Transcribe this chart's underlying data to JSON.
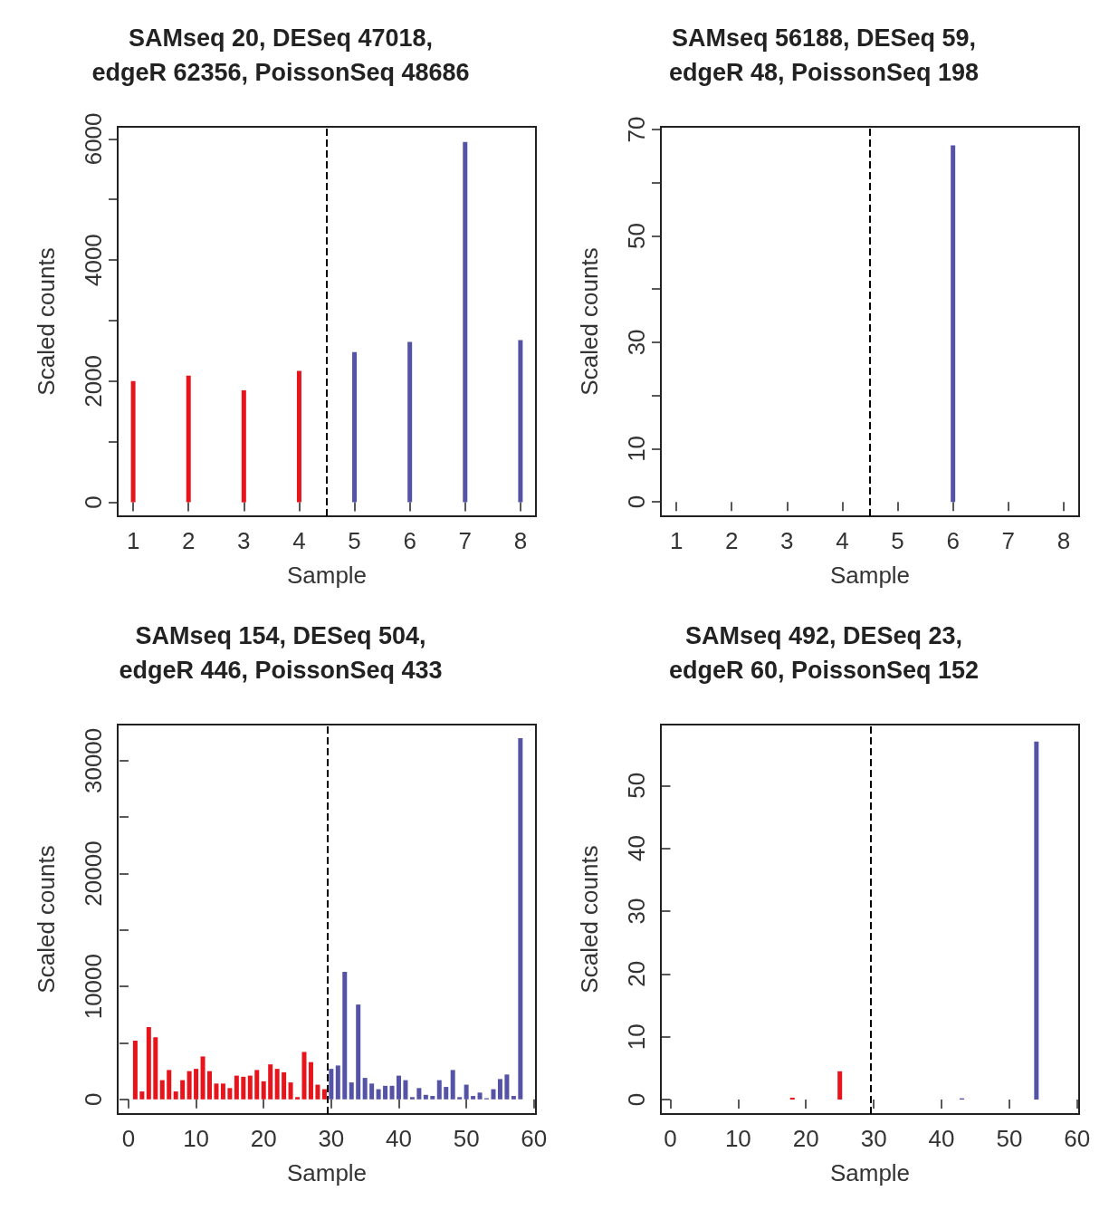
{
  "chart_data": [
    {
      "type": "bar",
      "title": "SAMseq 20, DESeq 47018,\nedgeR 62356, PoissonSeq 48686",
      "xlabel": "Sample",
      "ylabel": "Scaled counts",
      "x": [
        1,
        2,
        3,
        4,
        5,
        6,
        7,
        8
      ],
      "values": [
        2000,
        2090,
        1850,
        2170,
        2480,
        2650,
        5950,
        2680
      ],
      "colors": [
        "#e8141c",
        "#e8141c",
        "#e8141c",
        "#e8141c",
        "#5553a6",
        "#5553a6",
        "#5553a6",
        "#5553a6"
      ],
      "xlim": [
        0.72,
        8.28
      ],
      "xticks": [
        1,
        2,
        3,
        4,
        5,
        6,
        7,
        8
      ],
      "ylim": [
        -230,
        6200
      ],
      "yticks": [
        0,
        {
          "value": 1000,
          "label": null
        },
        2000,
        {
          "value": 3000,
          "label": null
        },
        4000,
        {
          "value": 5000,
          "label": null
        },
        6000
      ],
      "ref_lines": [
        {
          "axis": "x",
          "value": 4.5,
          "line_style": "dashed",
          "color": "#000000"
        }
      ],
      "grid": false
    },
    {
      "type": "bar",
      "title": "SAMseq 56188, DESeq 59,\nedgeR 48, PoissonSeq 198",
      "xlabel": "Sample",
      "ylabel": "Scaled counts",
      "x": [
        1,
        2,
        3,
        4,
        5,
        6,
        7,
        8
      ],
      "values": [
        0,
        0,
        0,
        0,
        0,
        67,
        0,
        0
      ],
      "colors": [
        "#e8141c",
        "#e8141c",
        "#e8141c",
        "#e8141c",
        "#5553a6",
        "#5553a6",
        "#5553a6",
        "#5553a6"
      ],
      "xlim": [
        0.72,
        8.28
      ],
      "xticks": [
        1,
        2,
        3,
        4,
        5,
        6,
        7,
        8
      ],
      "ylim": [
        -2.7,
        70.5
      ],
      "yticks": [
        0,
        10,
        {
          "value": 20,
          "label": null
        },
        30,
        {
          "value": 40,
          "label": null
        },
        50,
        {
          "value": 60,
          "label": null
        },
        70
      ],
      "ref_lines": [
        {
          "axis": "x",
          "value": 4.5,
          "line_style": "dashed",
          "color": "#000000"
        }
      ],
      "grid": false
    },
    {
      "type": "bar",
      "title": "SAMseq 154, DESeq 504,\nedgeR 446, PoissonSeq 433",
      "xlabel": "Sample",
      "ylabel": "Scaled counts",
      "x": [
        1,
        2,
        3,
        4,
        5,
        6,
        7,
        8,
        9,
        10,
        11,
        12,
        13,
        14,
        15,
        16,
        17,
        18,
        19,
        20,
        21,
        22,
        23,
        24,
        25,
        26,
        27,
        28,
        29,
        30,
        31,
        32,
        33,
        34,
        35,
        36,
        37,
        38,
        39,
        40,
        41,
        42,
        43,
        44,
        45,
        46,
        47,
        48,
        49,
        50,
        51,
        52,
        53,
        54,
        55,
        56,
        57,
        58
      ],
      "values": [
        5200,
        700,
        6400,
        5500,
        1700,
        2600,
        700,
        1700,
        2500,
        2700,
        3800,
        2500,
        1400,
        1400,
        1000,
        2100,
        2000,
        2100,
        2600,
        1600,
        3100,
        2700,
        2400,
        1500,
        200,
        4200,
        3300,
        1300,
        900,
        2700,
        3000,
        11300,
        1500,
        8400,
        1900,
        1400,
        900,
        1200,
        1200,
        2100,
        1700,
        200,
        1000,
        400,
        300,
        1700,
        1100,
        2600,
        200,
        1300,
        300,
        600,
        100,
        900,
        1800,
        2200,
        300,
        32000
      ],
      "colors": [
        "#e8141c",
        "#e8141c",
        "#e8141c",
        "#e8141c",
        "#e8141c",
        "#e8141c",
        "#e8141c",
        "#e8141c",
        "#e8141c",
        "#e8141c",
        "#e8141c",
        "#e8141c",
        "#e8141c",
        "#e8141c",
        "#e8141c",
        "#e8141c",
        "#e8141c",
        "#e8141c",
        "#e8141c",
        "#e8141c",
        "#e8141c",
        "#e8141c",
        "#e8141c",
        "#e8141c",
        "#e8141c",
        "#e8141c",
        "#e8141c",
        "#e8141c",
        "#e8141c",
        "#5553a6",
        "#5553a6",
        "#5553a6",
        "#5553a6",
        "#5553a6",
        "#5553a6",
        "#5553a6",
        "#5553a6",
        "#5553a6",
        "#5553a6",
        "#5553a6",
        "#5553a6",
        "#5553a6",
        "#5553a6",
        "#5553a6",
        "#5553a6",
        "#5553a6",
        "#5553a6",
        "#5553a6",
        "#5553a6",
        "#5553a6",
        "#5553a6",
        "#5553a6",
        "#5553a6",
        "#5553a6",
        "#5553a6",
        "#5553a6",
        "#5553a6",
        "#5553a6"
      ],
      "xlim": [
        -1.6,
        60.3
      ],
      "xticks": [
        0,
        10,
        20,
        30,
        40,
        50,
        60
      ],
      "ylim": [
        -1300,
        33200
      ],
      "yticks": [
        0,
        {
          "value": 5000,
          "label": null
        },
        10000,
        {
          "value": 15000,
          "label": null
        },
        20000,
        {
          "value": 25000,
          "label": null
        },
        30000
      ],
      "ref_lines": [
        {
          "axis": "x",
          "value": 29.5,
          "line_style": "dashed",
          "color": "#000000"
        }
      ],
      "grid": false
    },
    {
      "type": "bar",
      "title": "SAMseq 492, DESeq 23,\nedgeR 60, PoissonSeq 152",
      "xlabel": "Sample",
      "ylabel": "Scaled counts",
      "x": [
        1,
        2,
        3,
        4,
        5,
        6,
        7,
        8,
        9,
        10,
        11,
        12,
        13,
        14,
        15,
        16,
        17,
        18,
        19,
        20,
        21,
        22,
        23,
        24,
        25,
        26,
        27,
        28,
        29,
        30,
        31,
        32,
        33,
        34,
        35,
        36,
        37,
        38,
        39,
        40,
        41,
        42,
        43,
        44,
        45,
        46,
        47,
        48,
        49,
        50,
        51,
        52,
        53,
        54,
        55,
        56,
        57,
        58
      ],
      "values": [
        0,
        0,
        0,
        0,
        0,
        0,
        0,
        0,
        0,
        0,
        0,
        0,
        0,
        0,
        0,
        0,
        0,
        0.3,
        0,
        0,
        0,
        0,
        0,
        0,
        4.5,
        0,
        0,
        0,
        0,
        0,
        0,
        0,
        0,
        0,
        0,
        0,
        0,
        0,
        0,
        0,
        0,
        0,
        0.2,
        0,
        0,
        0,
        0,
        0,
        0,
        0,
        0,
        0,
        0,
        57,
        0,
        0,
        0,
        0
      ],
      "colors": [
        "#e8141c",
        "#e8141c",
        "#e8141c",
        "#e8141c",
        "#e8141c",
        "#e8141c",
        "#e8141c",
        "#e8141c",
        "#e8141c",
        "#e8141c",
        "#e8141c",
        "#e8141c",
        "#e8141c",
        "#e8141c",
        "#e8141c",
        "#e8141c",
        "#e8141c",
        "#e8141c",
        "#e8141c",
        "#e8141c",
        "#e8141c",
        "#e8141c",
        "#e8141c",
        "#e8141c",
        "#e8141c",
        "#e8141c",
        "#e8141c",
        "#e8141c",
        "#e8141c",
        "#5553a6",
        "#5553a6",
        "#5553a6",
        "#5553a6",
        "#5553a6",
        "#5553a6",
        "#5553a6",
        "#5553a6",
        "#5553a6",
        "#5553a6",
        "#5553a6",
        "#5553a6",
        "#5553a6",
        "#5553a6",
        "#5553a6",
        "#5553a6",
        "#5553a6",
        "#5553a6",
        "#5553a6",
        "#5553a6",
        "#5553a6",
        "#5553a6",
        "#5553a6",
        "#5553a6",
        "#5553a6",
        "#5553a6",
        "#5553a6",
        "#5553a6",
        "#5553a6"
      ],
      "xlim": [
        -1.4,
        60.3
      ],
      "xticks": [
        0,
        10,
        20,
        30,
        40,
        50,
        60
      ],
      "ylim": [
        -2.3,
        59.7
      ],
      "yticks": [
        0,
        10,
        20,
        30,
        40,
        50
      ],
      "ref_lines": [
        {
          "axis": "x",
          "value": 29.5,
          "line_style": "dashed",
          "color": "#000000"
        }
      ],
      "grid": false
    }
  ]
}
